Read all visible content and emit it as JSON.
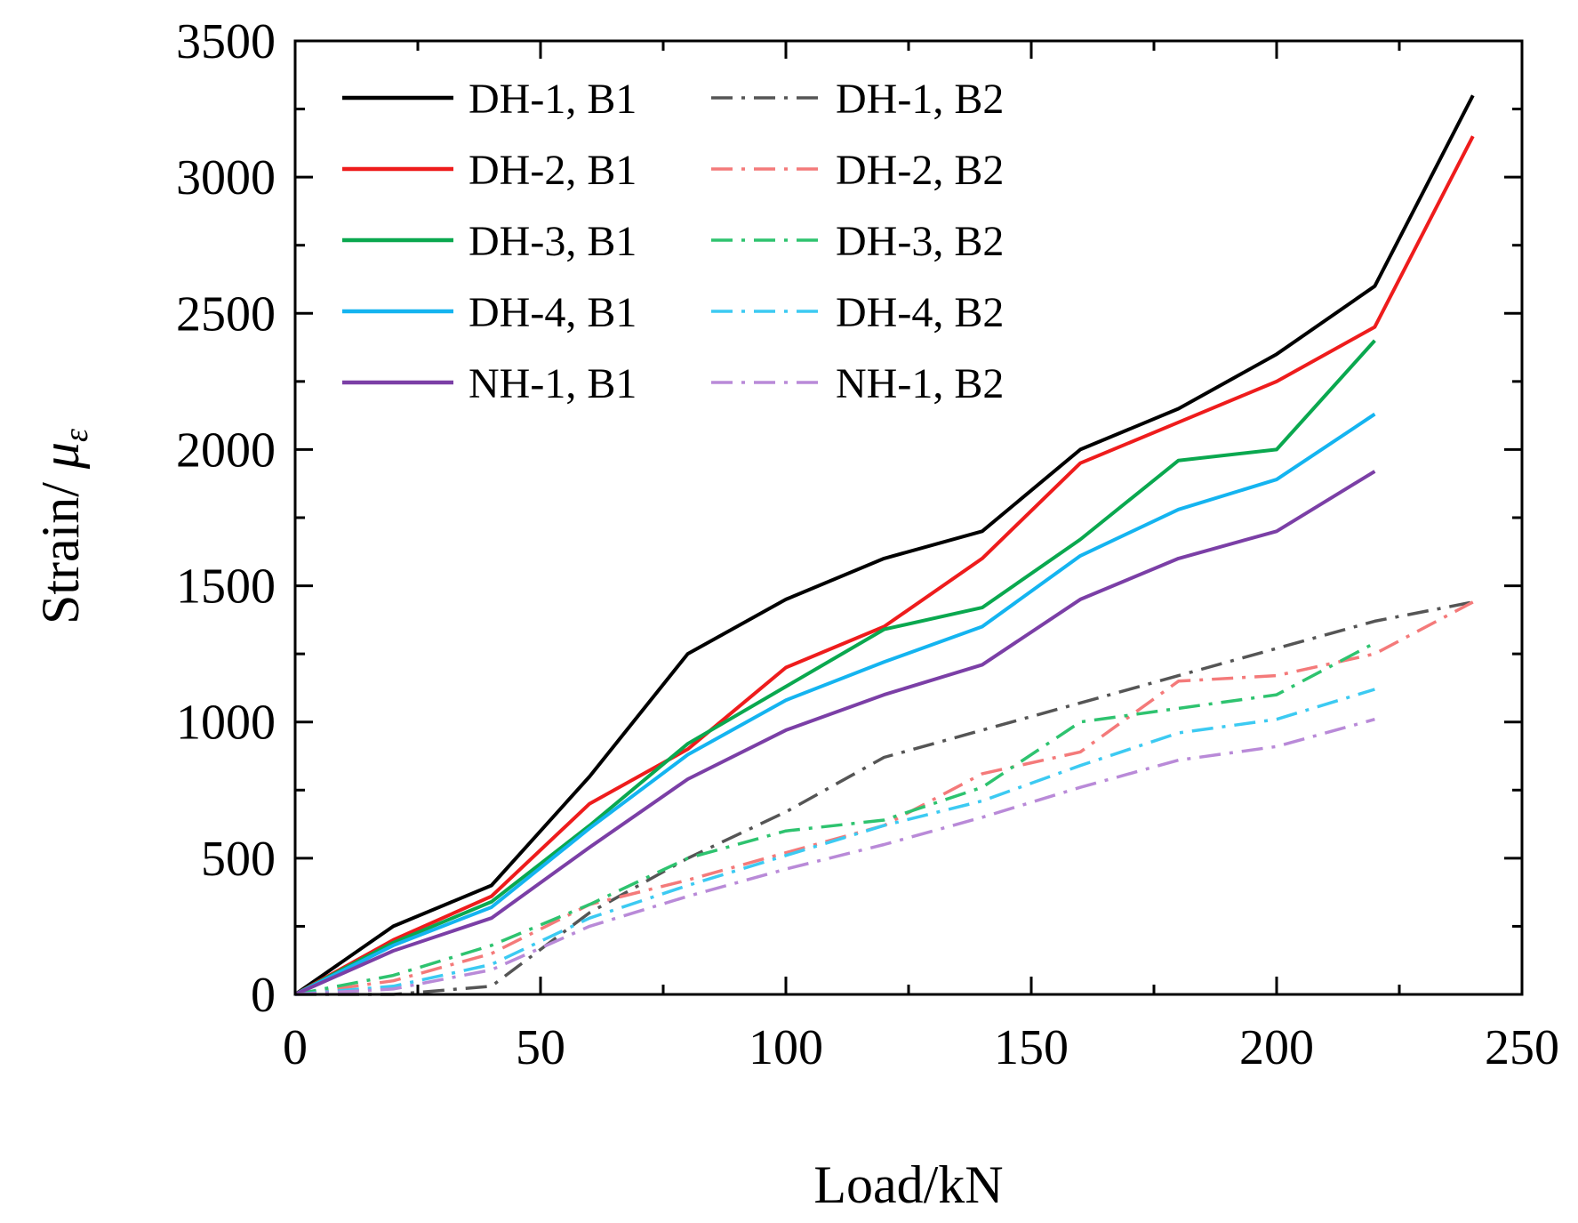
{
  "chart_data": {
    "type": "line",
    "xlabel": "Load/kN",
    "ylabel_main": "Strain/ ",
    "ylabel_symbol": "μ",
    "ylabel_subscript": "ε",
    "xlim": [
      0,
      250
    ],
    "ylim": [
      0,
      3500
    ],
    "xticks": [
      0,
      50,
      100,
      150,
      200,
      250
    ],
    "yticks": [
      0,
      500,
      1000,
      1500,
      2000,
      2500,
      3000,
      3500
    ],
    "xtick_labels": [
      "0",
      "50",
      "100",
      "150",
      "200",
      "250"
    ],
    "ytick_labels": [
      "0",
      "500",
      "1000",
      "1500",
      "2000",
      "2500",
      "3000",
      "3500"
    ],
    "grid": false,
    "legend_position": "top-left",
    "series": [
      {
        "name": "DH-1, B1",
        "color": "#000000",
        "style": "solid",
        "x": [
          0,
          20,
          40,
          60,
          80,
          100,
          120,
          140,
          160,
          180,
          200,
          220,
          240
        ],
        "y": [
          0,
          250,
          400,
          800,
          1250,
          1450,
          1600,
          1700,
          2000,
          2150,
          2350,
          2600,
          3300
        ]
      },
      {
        "name": "DH-1, B2",
        "color": "#555555",
        "style": "dashdot",
        "x": [
          0,
          20,
          40,
          60,
          80,
          100,
          120,
          140,
          160,
          180,
          200,
          220,
          240
        ],
        "y": [
          0,
          0,
          30,
          300,
          500,
          670,
          870,
          970,
          1070,
          1170,
          1270,
          1370,
          1440
        ]
      },
      {
        "name": "DH-2, B1",
        "color": "#ee1c1c",
        "style": "solid",
        "x": [
          0,
          20,
          40,
          60,
          80,
          100,
          120,
          140,
          160,
          180,
          200,
          220,
          240
        ],
        "y": [
          0,
          200,
          360,
          700,
          900,
          1200,
          1350,
          1600,
          1950,
          2100,
          2250,
          2450,
          3150
        ]
      },
      {
        "name": "DH-2, B2",
        "color": "#f47a7a",
        "style": "dashdot",
        "x": [
          0,
          20,
          40,
          60,
          80,
          100,
          120,
          140,
          160,
          180,
          200,
          220,
          240
        ],
        "y": [
          0,
          50,
          150,
          330,
          420,
          520,
          620,
          810,
          890,
          1150,
          1170,
          1250,
          1440
        ]
      },
      {
        "name": "DH-3, B1",
        "color": "#0aa84f",
        "style": "solid",
        "x": [
          0,
          20,
          40,
          60,
          80,
          100,
          120,
          140,
          160,
          180,
          200,
          220
        ],
        "y": [
          0,
          190,
          340,
          620,
          920,
          1130,
          1340,
          1420,
          1670,
          1960,
          2000,
          2400
        ]
      },
      {
        "name": "DH-3, B2",
        "color": "#2ec36f",
        "style": "dashdot",
        "x": [
          0,
          20,
          40,
          60,
          80,
          100,
          120,
          140,
          160,
          180,
          200,
          220
        ],
        "y": [
          0,
          70,
          180,
          330,
          500,
          600,
          640,
          760,
          1000,
          1050,
          1100,
          1290
        ]
      },
      {
        "name": "DH-4, B1",
        "color": "#14b4f0",
        "style": "solid",
        "x": [
          0,
          20,
          40,
          60,
          80,
          100,
          120,
          140,
          160,
          180,
          200,
          220
        ],
        "y": [
          0,
          180,
          320,
          610,
          880,
          1080,
          1220,
          1350,
          1610,
          1780,
          1890,
          2130
        ]
      },
      {
        "name": "DH-4, B2",
        "color": "#3ccaf2",
        "style": "dashdot",
        "x": [
          0,
          20,
          40,
          60,
          80,
          100,
          120,
          140,
          160,
          180,
          200,
          220
        ],
        "y": [
          0,
          30,
          110,
          280,
          400,
          510,
          620,
          710,
          840,
          960,
          1010,
          1120
        ]
      },
      {
        "name": "NH-1, B1",
        "color": "#7b3fa6",
        "style": "solid",
        "x": [
          0,
          20,
          40,
          60,
          80,
          100,
          120,
          140,
          160,
          180,
          200,
          220
        ],
        "y": [
          0,
          160,
          280,
          540,
          790,
          970,
          1100,
          1210,
          1450,
          1600,
          1700,
          1920
        ]
      },
      {
        "name": "NH-1, B2",
        "color": "#b98ad8",
        "style": "dashdot",
        "x": [
          0,
          20,
          40,
          60,
          80,
          100,
          120,
          140,
          160,
          180,
          200,
          220
        ],
        "y": [
          0,
          20,
          90,
          250,
          360,
          460,
          550,
          650,
          760,
          860,
          910,
          1010
        ]
      }
    ]
  }
}
